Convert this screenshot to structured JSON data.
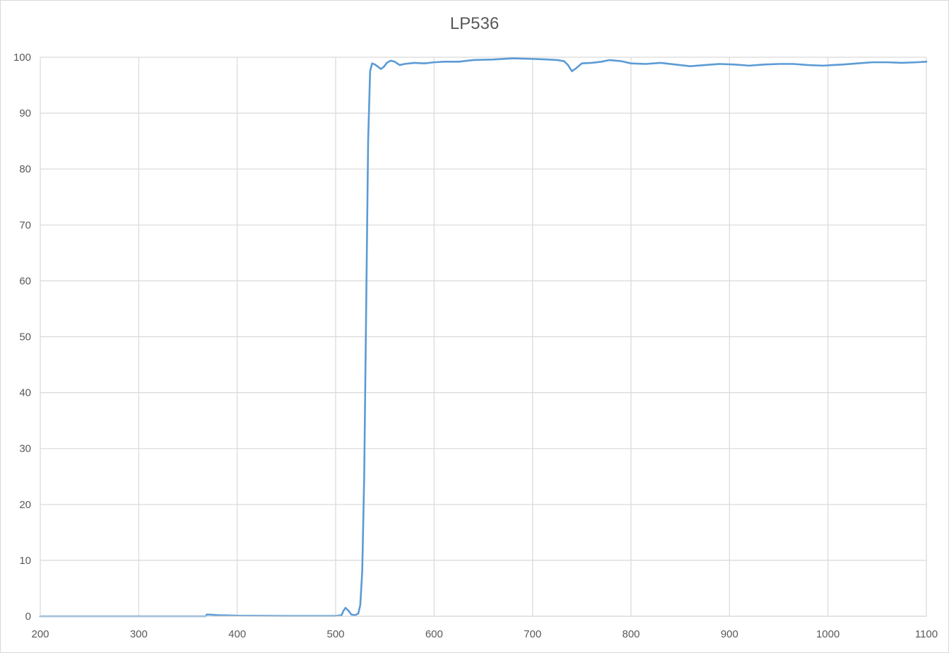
{
  "chart_data": {
    "type": "line",
    "title": "LP536",
    "xlabel": "",
    "ylabel": "",
    "xlim": [
      200,
      1100
    ],
    "ylim": [
      0,
      100
    ],
    "x_ticks": [
      "200",
      "300",
      "400",
      "500",
      "600",
      "700",
      "800",
      "900",
      "1000",
      "1100"
    ],
    "y_ticks": [
      "0",
      "10",
      "20",
      "30",
      "40",
      "50",
      "60",
      "70",
      "80",
      "90",
      "100"
    ],
    "grid": true,
    "legend": "none",
    "series": [
      {
        "color": "#5b9bd5",
        "points": [
          [
            200,
            0.0
          ],
          [
            300,
            0.0
          ],
          [
            368,
            0.0
          ],
          [
            369,
            0.3
          ],
          [
            372,
            0.3
          ],
          [
            380,
            0.2
          ],
          [
            400,
            0.1
          ],
          [
            450,
            0.05
          ],
          [
            500,
            0.05
          ],
          [
            506,
            0.2
          ],
          [
            508,
            1.0
          ],
          [
            510,
            1.5
          ],
          [
            513,
            1.0
          ],
          [
            516,
            0.3
          ],
          [
            520,
            0.2
          ],
          [
            523,
            0.5
          ],
          [
            525,
            2.0
          ],
          [
            527,
            8.0
          ],
          [
            529,
            25.0
          ],
          [
            531,
            55.0
          ],
          [
            533,
            85.0
          ],
          [
            535,
            97.5
          ],
          [
            537,
            98.9
          ],
          [
            540,
            98.7
          ],
          [
            543,
            98.3
          ],
          [
            546,
            97.9
          ],
          [
            549,
            98.3
          ],
          [
            552,
            99.0
          ],
          [
            556,
            99.4
          ],
          [
            560,
            99.2
          ],
          [
            565,
            98.6
          ],
          [
            570,
            98.8
          ],
          [
            580,
            99.0
          ],
          [
            590,
            98.9
          ],
          [
            600,
            99.1
          ],
          [
            610,
            99.2
          ],
          [
            625,
            99.2
          ],
          [
            640,
            99.5
          ],
          [
            660,
            99.6
          ],
          [
            680,
            99.8
          ],
          [
            700,
            99.7
          ],
          [
            715,
            99.6
          ],
          [
            725,
            99.5
          ],
          [
            732,
            99.3
          ],
          [
            736,
            98.6
          ],
          [
            740,
            97.5
          ],
          [
            744,
            98.0
          ],
          [
            750,
            98.9
          ],
          [
            760,
            99.0
          ],
          [
            770,
            99.2
          ],
          [
            778,
            99.5
          ],
          [
            790,
            99.3
          ],
          [
            800,
            98.9
          ],
          [
            815,
            98.8
          ],
          [
            830,
            99.0
          ],
          [
            845,
            98.7
          ],
          [
            860,
            98.4
          ],
          [
            875,
            98.6
          ],
          [
            890,
            98.8
          ],
          [
            905,
            98.7
          ],
          [
            920,
            98.5
          ],
          [
            935,
            98.7
          ],
          [
            950,
            98.8
          ],
          [
            965,
            98.8
          ],
          [
            980,
            98.6
          ],
          [
            995,
            98.5
          ],
          [
            1005,
            98.6
          ],
          [
            1015,
            98.7
          ],
          [
            1030,
            98.9
          ],
          [
            1045,
            99.1
          ],
          [
            1060,
            99.1
          ],
          [
            1075,
            99.0
          ],
          [
            1090,
            99.1
          ],
          [
            1100,
            99.2
          ]
        ]
      }
    ]
  }
}
